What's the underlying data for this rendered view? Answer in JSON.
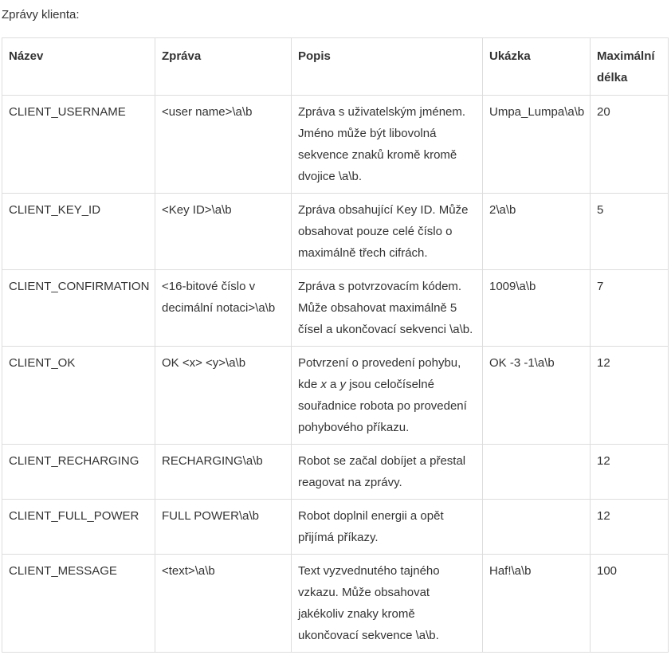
{
  "intro": "Zprávy klienta:",
  "table": {
    "headers": [
      "Název",
      "Zpráva",
      "Popis",
      "Ukázka",
      "Maximální délka"
    ],
    "rows": [
      {
        "name": "CLIENT_USERNAME",
        "message": "<user name>\\a\\b",
        "description_parts": [
          "Zpráva s uživatelským jménem. Jméno může být libovolná sekvence znaků kromě kromě dvojice \\a\\b."
        ],
        "example": "Umpa_Lumpa\\a\\b",
        "max_length": "20"
      },
      {
        "name": "CLIENT_KEY_ID",
        "message": "<Key ID>\\a\\b",
        "description_parts": [
          "Zpráva obsahující Key ID. Může obsahovat pouze celé číslo o maximálně třech cifrách."
        ],
        "example": "2\\a\\b",
        "max_length": "5"
      },
      {
        "name": "CLIENT_CONFIRMATION",
        "message": "<16-bitové číslo v decimální notaci>\\a\\b",
        "description_parts": [
          "Zpráva s potvrzovacím kódem. Může obsahovat maximálně 5 čísel a ukončovací sekvenci \\a\\b."
        ],
        "example": "1009\\a\\b",
        "max_length": "7"
      },
      {
        "name": "CLIENT_OK",
        "message": "OK <x> <y>\\a\\b",
        "description_parts": [
          "Potvrzení o provedení pohybu, kde ",
          "x",
          " a ",
          "y",
          " jsou celočíselné souřadnice robota po provedení pohybového příkazu."
        ],
        "example": "OK -3 -1\\a\\b",
        "max_length": "12"
      },
      {
        "name": "CLIENT_RECHARGING",
        "message": "RECHARGING\\a\\b",
        "description_parts": [
          "Robot se začal dobíjet a přestal reagovat na zprávy."
        ],
        "example": "",
        "max_length": "12"
      },
      {
        "name": "CLIENT_FULL_POWER",
        "message": "FULL POWER\\a\\b",
        "description_parts": [
          "Robot doplnil energii a opět přijímá příkazy."
        ],
        "example": "",
        "max_length": "12"
      },
      {
        "name": "CLIENT_MESSAGE",
        "message": "<text>\\a\\b",
        "description_parts": [
          "Text vyzvednutého tajného vzkazu. Může obsahovat jakékoliv znaky kromě ukončovací sekvence \\a\\b."
        ],
        "example": "Haf!\\a\\b",
        "max_length": "100"
      }
    ]
  }
}
